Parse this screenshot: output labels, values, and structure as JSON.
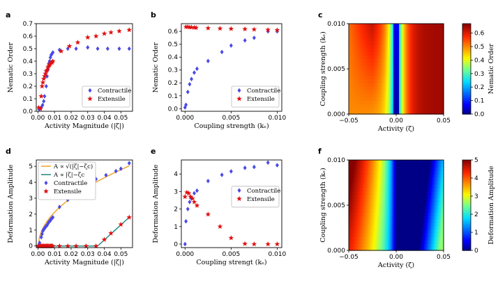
{
  "chart_data": [
    {
      "id": "a",
      "panel_label": "a",
      "type": "scatter",
      "xlabel": "Activity Magnitude (|ζ|)",
      "ylabel": "Nematic Order",
      "xlim": [
        -0.001,
        0.057
      ],
      "ylim": [
        0.0,
        0.7
      ],
      "xticks": [
        0.0,
        0.01,
        0.02,
        0.03,
        0.04,
        0.05
      ],
      "xtick_labels": [
        "0.00",
        "0.01",
        "0.02",
        "0.03",
        "0.04",
        "0.05"
      ],
      "yticks": [
        0.0,
        0.1,
        0.2,
        0.3,
        0.4,
        0.5,
        0.6,
        0.7
      ],
      "ytick_labels": [
        "0.0",
        "0.1",
        "0.2",
        "0.3",
        "0.4",
        "0.5",
        "0.6",
        "0.7"
      ],
      "legend": {
        "position": "lower-right",
        "entries": [
          {
            "label": "Contractile",
            "marker": "diamond"
          },
          {
            "label": "Extensile",
            "marker": "star"
          }
        ]
      },
      "series": [
        {
          "name": "Contractile",
          "marker": "diamond",
          "color": "#4a4ae8",
          "points": [
            [
              0.0005,
              0.02
            ],
            [
              0.0012,
              0.02
            ],
            [
              0.002,
              0.03
            ],
            [
              0.0028,
              0.05
            ],
            [
              0.0035,
              0.08
            ],
            [
              0.004,
              0.12
            ],
            [
              0.005,
              0.2
            ],
            [
              0.0055,
              0.28
            ],
            [
              0.006,
              0.33
            ],
            [
              0.0065,
              0.38
            ],
            [
              0.007,
              0.4
            ],
            [
              0.0075,
              0.43
            ],
            [
              0.008,
              0.45
            ],
            [
              0.0085,
              0.46
            ],
            [
              0.009,
              0.47
            ],
            [
              0.013,
              0.49
            ],
            [
              0.018,
              0.5
            ],
            [
              0.023,
              0.5
            ],
            [
              0.03,
              0.51
            ],
            [
              0.036,
              0.5
            ],
            [
              0.042,
              0.5
            ],
            [
              0.049,
              0.5
            ],
            [
              0.055,
              0.5
            ]
          ]
        },
        {
          "name": "Extensile",
          "marker": "star",
          "color": "#e01010",
          "points": [
            [
              0.0005,
              0.03
            ],
            [
              0.0015,
              0.02
            ],
            [
              0.002,
              0.12
            ],
            [
              0.0025,
              0.2
            ],
            [
              0.003,
              0.23
            ],
            [
              0.0035,
              0.26
            ],
            [
              0.004,
              0.28
            ],
            [
              0.0045,
              0.3
            ],
            [
              0.005,
              0.32
            ],
            [
              0.0055,
              0.33
            ],
            [
              0.006,
              0.35
            ],
            [
              0.0065,
              0.36
            ],
            [
              0.007,
              0.37
            ],
            [
              0.0075,
              0.38
            ],
            [
              0.008,
              0.39
            ],
            [
              0.0085,
              0.39
            ],
            [
              0.009,
              0.4
            ],
            [
              0.014,
              0.48
            ],
            [
              0.019,
              0.52
            ],
            [
              0.024,
              0.55
            ],
            [
              0.03,
              0.59
            ],
            [
              0.035,
              0.6
            ],
            [
              0.04,
              0.62
            ],
            [
              0.044,
              0.63
            ],
            [
              0.049,
              0.64
            ],
            [
              0.055,
              0.65
            ]
          ]
        }
      ]
    },
    {
      "id": "b",
      "panel_label": "b",
      "type": "scatter",
      "xlabel": "Coupling strength (kₑ)",
      "ylabel": "Nematic Order",
      "xlim": [
        -0.0004,
        0.0105
      ],
      "ylim": [
        -0.02,
        0.66
      ],
      "xticks": [
        0.0,
        0.005,
        0.01
      ],
      "xtick_labels": [
        "0.000",
        "0.005",
        "0.010"
      ],
      "yticks": [
        0.0,
        0.1,
        0.2,
        0.3,
        0.4,
        0.5,
        0.6
      ],
      "ytick_labels": [
        "0.0",
        "0.1",
        "0.2",
        "0.3",
        "0.4",
        "0.5",
        "0.6"
      ],
      "legend": {
        "position": "lower-right",
        "entries": [
          {
            "label": "Contractile",
            "marker": "diamond"
          },
          {
            "label": "Extensile",
            "marker": "star"
          }
        ]
      },
      "series": [
        {
          "name": "Contractile",
          "marker": "diamond",
          "color": "#4a4ae8",
          "points": [
            [
              0.0,
              0.01
            ],
            [
              0.0001,
              0.03
            ],
            [
              0.0003,
              0.13
            ],
            [
              0.0005,
              0.19
            ],
            [
              0.0007,
              0.23
            ],
            [
              0.001,
              0.28
            ],
            [
              0.0013,
              0.31
            ],
            [
              0.0025,
              0.37
            ],
            [
              0.004,
              0.44
            ],
            [
              0.005,
              0.49
            ],
            [
              0.0065,
              0.53
            ],
            [
              0.0075,
              0.55
            ],
            [
              0.009,
              0.6
            ],
            [
              0.01,
              0.6
            ]
          ]
        },
        {
          "name": "Extensile",
          "marker": "star",
          "color": "#e01010",
          "points": [
            [
              0.0001,
              0.635
            ],
            [
              0.0003,
              0.635
            ],
            [
              0.0005,
              0.632
            ],
            [
              0.0007,
              0.632
            ],
            [
              0.001,
              0.63
            ],
            [
              0.0012,
              0.628
            ],
            [
              0.0025,
              0.625
            ],
            [
              0.0038,
              0.622
            ],
            [
              0.005,
              0.62
            ],
            [
              0.0065,
              0.618
            ],
            [
              0.0075,
              0.615
            ],
            [
              0.009,
              0.612
            ],
            [
              0.01,
              0.61
            ]
          ]
        }
      ]
    },
    {
      "id": "c",
      "panel_label": "c",
      "type": "heatmap",
      "xlabel": "Activity (ζ)",
      "ylabel": "Coupling strength (kₑ)",
      "xlim": [
        -0.05,
        0.05
      ],
      "ylim": [
        0.0,
        0.01
      ],
      "xticks": [
        -0.05,
        0.0,
        0.05
      ],
      "xtick_labels": [
        "−0.05",
        "0.00",
        "0.05"
      ],
      "yticks": [
        0.0,
        0.005,
        0.01
      ],
      "ytick_labels": [
        "0.000",
        "0.005",
        "0.010"
      ],
      "colorbar": {
        "label": "Nematic Order",
        "range": [
          0,
          0.67
        ],
        "ticks": [
          0.0,
          0.1,
          0.2,
          0.3,
          0.4,
          0.5,
          0.6
        ],
        "tick_labels": [
          "0.0",
          "0.1",
          "0.2",
          "0.3",
          "0.4",
          "0.5",
          "0.6"
        ]
      }
    },
    {
      "id": "d",
      "panel_label": "d",
      "type": "scatter",
      "xlabel": "Activity Magnitude (|ζ|)",
      "ylabel": "Deformation Amplitude",
      "xlim": [
        -0.001,
        0.057
      ],
      "ylim": [
        -0.1,
        5.4
      ],
      "xticks": [
        0.0,
        0.01,
        0.02,
        0.03,
        0.04,
        0.05
      ],
      "xtick_labels": [
        "0.00",
        "0.01",
        "0.02",
        "0.03",
        "0.04",
        "0.05"
      ],
      "yticks": [
        0,
        1,
        2,
        3,
        4,
        5
      ],
      "ytick_labels": [
        "0",
        "1",
        "2",
        "3",
        "4",
        "5"
      ],
      "legend": {
        "position": "top-left",
        "entries": [
          {
            "label": "A ∝ √(|ζ|−ζc)",
            "marker": "line",
            "color": "#f0a020"
          },
          {
            "label": "A ∝ |ζ|−ζc",
            "marker": "line",
            "color": "#1a8a7a"
          },
          {
            "label": "Contractile",
            "marker": "diamond"
          },
          {
            "label": "Extensile",
            "marker": "star"
          }
        ]
      },
      "fit_curves": [
        {
          "name": "sqrt-fit",
          "color": "#f0a020",
          "form": "sqrt",
          "coef": 21.5,
          "zc": 0.0003,
          "x_range": [
            0.0003,
            0.055
          ]
        },
        {
          "name": "linear-fit",
          "color": "#1a8a7a",
          "form": "linear",
          "coef": 95,
          "zc": 0.036,
          "x_range": [
            0.0,
            0.055
          ]
        }
      ],
      "series": [
        {
          "name": "Contractile",
          "marker": "diamond",
          "color": "#4a4ae8",
          "points": [
            [
              0.0005,
              0.0
            ],
            [
              0.001,
              0.2
            ],
            [
              0.002,
              0.55
            ],
            [
              0.0025,
              0.75
            ],
            [
              0.003,
              0.95
            ],
            [
              0.0035,
              1.05
            ],
            [
              0.004,
              1.1
            ],
            [
              0.0045,
              1.2
            ],
            [
              0.005,
              1.25
            ],
            [
              0.0055,
              1.3
            ],
            [
              0.006,
              1.4
            ],
            [
              0.0065,
              1.5
            ],
            [
              0.007,
              1.55
            ],
            [
              0.0075,
              1.6
            ],
            [
              0.008,
              1.7
            ],
            [
              0.0085,
              1.75
            ],
            [
              0.009,
              1.8
            ],
            [
              0.013,
              2.45
            ],
            [
              0.018,
              2.9
            ],
            [
              0.023,
              3.5
            ],
            [
              0.03,
              3.85
            ],
            [
              0.035,
              4.2
            ],
            [
              0.041,
              4.45
            ],
            [
              0.047,
              4.7
            ],
            [
              0.05,
              4.85
            ],
            [
              0.055,
              5.2
            ]
          ]
        },
        {
          "name": "Extensile",
          "marker": "star",
          "color": "#e01010",
          "points": [
            [
              0.0,
              0.0
            ],
            [
              0.001,
              0.0
            ],
            [
              0.0015,
              0.0
            ],
            [
              0.002,
              0.0
            ],
            [
              0.0025,
              0.0
            ],
            [
              0.003,
              0.0
            ],
            [
              0.0035,
              0.0
            ],
            [
              0.004,
              0.0
            ],
            [
              0.0045,
              0.0
            ],
            [
              0.005,
              0.0
            ],
            [
              0.0055,
              0.0
            ],
            [
              0.006,
              0.0
            ],
            [
              0.0065,
              0.0
            ],
            [
              0.007,
              0.0
            ],
            [
              0.0075,
              0.0
            ],
            [
              0.008,
              0.0
            ],
            [
              0.0085,
              0.0
            ],
            [
              0.009,
              0.0
            ],
            [
              0.013,
              0.0
            ],
            [
              0.018,
              0.0
            ],
            [
              0.023,
              0.0
            ],
            [
              0.029,
              0.0
            ],
            [
              0.035,
              0.0
            ],
            [
              0.04,
              0.4
            ],
            [
              0.044,
              0.8
            ],
            [
              0.05,
              1.35
            ],
            [
              0.055,
              1.8
            ]
          ]
        }
      ]
    },
    {
      "id": "e",
      "panel_label": "e",
      "type": "scatter",
      "xlabel": "Coupling strengt (kₑ)",
      "ylabel": "Deformation Amplitude",
      "xlim": [
        -0.0004,
        0.0105
      ],
      "ylim": [
        -0.2,
        4.8
      ],
      "xticks": [
        0.0,
        0.005,
        0.01
      ],
      "xtick_labels": [
        "0.000",
        "0.005",
        "0.010"
      ],
      "yticks": [
        0,
        1,
        2,
        3,
        4
      ],
      "ytick_labels": [
        "0",
        "1",
        "2",
        "3",
        "4"
      ],
      "legend": {
        "position": "right",
        "entries": [
          {
            "label": "Contractile",
            "marker": "diamond"
          },
          {
            "label": "Extensile",
            "marker": "star"
          }
        ]
      },
      "series": [
        {
          "name": "Contractile",
          "marker": "diamond",
          "color": "#4a4ae8",
          "points": [
            [
              0.0,
              0.0
            ],
            [
              0.0001,
              1.3
            ],
            [
              0.0003,
              2.0
            ],
            [
              0.0005,
              2.4
            ],
            [
              0.0007,
              2.6
            ],
            [
              0.001,
              2.9
            ],
            [
              0.0013,
              3.05
            ],
            [
              0.0025,
              3.6
            ],
            [
              0.004,
              3.95
            ],
            [
              0.005,
              4.15
            ],
            [
              0.0065,
              4.35
            ],
            [
              0.0075,
              4.4
            ],
            [
              0.009,
              4.65
            ],
            [
              0.01,
              4.5
            ]
          ]
        },
        {
          "name": "Extensile",
          "marker": "star",
          "color": "#e01010",
          "points": [
            [
              0.0,
              2.7
            ],
            [
              0.0002,
              2.95
            ],
            [
              0.0004,
              2.9
            ],
            [
              0.0006,
              2.7
            ],
            [
              0.0008,
              2.6
            ],
            [
              0.001,
              2.4
            ],
            [
              0.0013,
              2.2
            ],
            [
              0.0025,
              1.7
            ],
            [
              0.0038,
              1.0
            ],
            [
              0.005,
              0.35
            ],
            [
              0.0065,
              0.02
            ],
            [
              0.0075,
              0.0
            ],
            [
              0.009,
              0.0
            ],
            [
              0.01,
              0.0
            ]
          ]
        }
      ]
    },
    {
      "id": "f",
      "panel_label": "f",
      "type": "heatmap",
      "xlabel": "Activity (ζ)",
      "ylabel": "Coupling strength (kₑ)",
      "xlim": [
        -0.05,
        0.05
      ],
      "ylim": [
        0.0,
        0.01
      ],
      "xticks": [
        -0.05,
        0.0,
        0.05
      ],
      "xtick_labels": [
        "−0.05",
        "0.00",
        "0.05"
      ],
      "yticks": [
        0.0,
        0.005,
        0.01
      ],
      "ytick_labels": [
        "0.000",
        "0.005",
        "0.010"
      ],
      "colorbar": {
        "label": "Deformation Amplitude",
        "range": [
          0,
          5
        ],
        "ticks": [
          0,
          1,
          2,
          3,
          4,
          5
        ],
        "tick_labels": [
          "0",
          "1",
          "2",
          "3",
          "4",
          "5"
        ]
      }
    }
  ]
}
